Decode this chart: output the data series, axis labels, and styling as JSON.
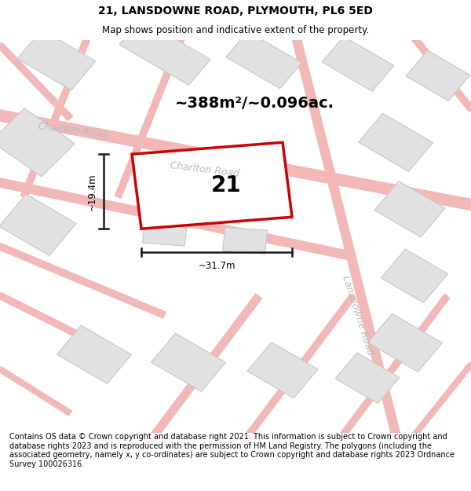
{
  "title": "21, LANSDOWNE ROAD, PLYMOUTH, PL6 5ED",
  "subtitle": "Map shows position and indicative extent of the property.",
  "footer": "Contains OS data © Crown copyright and database right 2021. This information is subject to Crown copyright and database rights 2023 and is reproduced with the permission of HM Land Registry. The polygons (including the associated geometry, namely x, y co-ordinates) are subject to Crown copyright and database rights 2023 Ordnance Survey 100026316.",
  "title_fontsize": 10,
  "subtitle_fontsize": 8.5,
  "footer_fontsize": 7.0,
  "road_color": "#f2b8b8",
  "road_edge_color": "#e89090",
  "building_fill": "#e2e2e2",
  "building_edge": "#c8c8c8",
  "map_bg": "#f7f7f7",
  "main_plot_color": "#cc0000",
  "main_plot_fill": "#ffffff",
  "dim_color": "#1a1a1a",
  "road_label_color": "#bbbbbb",
  "area_text": "~388m²/~0.096ac.",
  "dim_height_label": "~19.4m",
  "dim_width_label": "~31.7m",
  "plot_number": "21",
  "charlton_road_label1": "Charlton Road",
  "charlton_road_label2": "Charlton Road",
  "lansdowne_road_label": "Lansdowne Road"
}
